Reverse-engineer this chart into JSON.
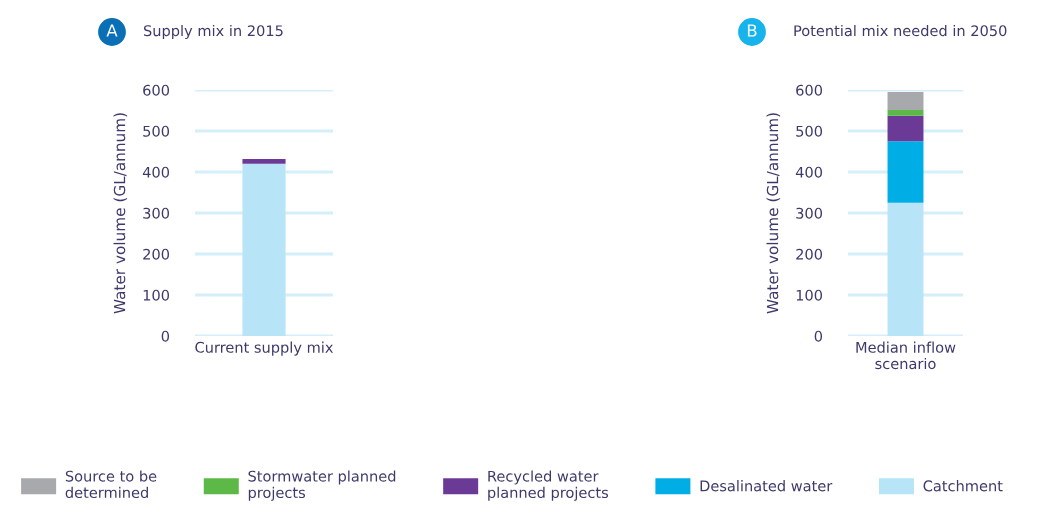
{
  "chart_data": [
    {
      "type": "bar",
      "stacked": true,
      "title": "Supply mix in 2015",
      "ylabel": "Water volume (GL/annum)",
      "annotations": [
        "A"
      ],
      "categories": [
        "Current supply mix"
      ],
      "ylim": [
        0,
        600
      ],
      "yticks": [
        0,
        100,
        200,
        300,
        400,
        500,
        600
      ],
      "grid": "y",
      "series": [
        {
          "color": "#b8e4f7",
          "values": [
            420
          ]
        },
        {
          "color": "#6b3a96",
          "values": [
            12
          ]
        }
      ]
    },
    {
      "type": "bar",
      "stacked": true,
      "title": "Potential mix needed in 2050",
      "ylabel": "Water volume (GL/annum)",
      "annotations": [
        "B"
      ],
      "categories": [
        "Median inflow scenario"
      ],
      "ylim": [
        0,
        600
      ],
      "yticks": [
        0,
        100,
        200,
        300,
        400,
        500,
        600
      ],
      "grid": "y",
      "legend": "bottom",
      "series": [
        {
          "name": "Catchment",
          "color": "#b8e4f7",
          "values": [
            325
          ]
        },
        {
          "name": "Desalinated water",
          "color": "#00aee6",
          "values": [
            150
          ]
        },
        {
          "name": "Recycled water planned projects",
          "color": "#6b3a96",
          "values": [
            62
          ]
        },
        {
          "name": "Stormwater planned projects",
          "color": "#5cb947",
          "values": [
            14
          ]
        },
        {
          "name": "Source to be determined",
          "color": "#a7a9ad",
          "values": [
            44
          ]
        }
      ]
    }
  ]
}
